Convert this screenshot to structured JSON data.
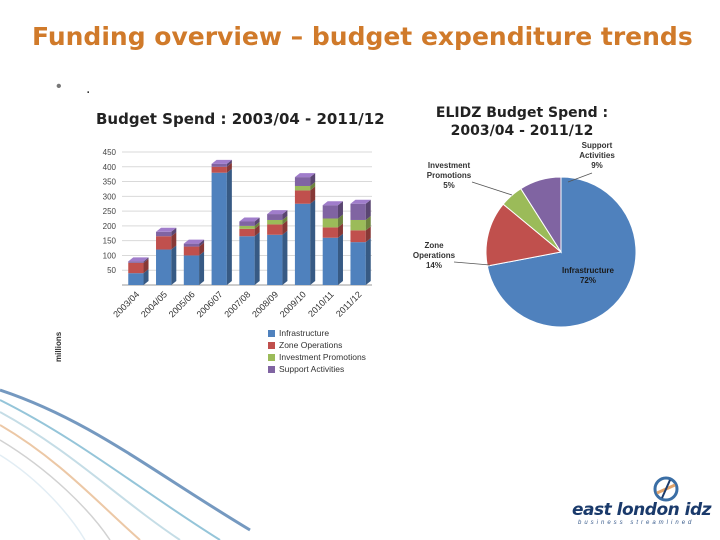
{
  "slide": {
    "title": "Funding overview – budget expenditure trends",
    "bullet": "•",
    "bullet_text": "."
  },
  "colors": {
    "title": "#d07a2a",
    "Infrastructure": "#4f81bd",
    "Zone Operations": "#c0504d",
    "Investment Promotions": "#9bbb59",
    "Support Activities": "#8064a2"
  },
  "chart_data": [
    {
      "type": "bar",
      "stacked": true,
      "title": "Budget Spend : 2003/04 - 2011/12",
      "ylabel": "millions",
      "ylim": [
        0,
        450
      ],
      "yticks": [
        50,
        100,
        150,
        200,
        250,
        300,
        350,
        400,
        450
      ],
      "categories": [
        "2003/04",
        "2004/05",
        "2005/06",
        "2006/07",
        "2007/08",
        "2008/09",
        "2009/10",
        "2010/11",
        "2011/12"
      ],
      "series": [
        {
          "name": "Infrastructure",
          "values": [
            40,
            120,
            100,
            380,
            165,
            170,
            275,
            160,
            145
          ]
        },
        {
          "name": "Zone Operations",
          "values": [
            35,
            45,
            30,
            20,
            25,
            35,
            45,
            35,
            40
          ]
        },
        {
          "name": "Investment Promotions",
          "values": [
            0,
            0,
            0,
            0,
            10,
            15,
            15,
            30,
            35
          ]
        },
        {
          "name": "Support Activities",
          "values": [
            5,
            15,
            10,
            10,
            15,
            20,
            30,
            45,
            55
          ]
        }
      ],
      "legend": "bottom"
    },
    {
      "type": "pie",
      "title": "ELIDZ Budget Spend : 2003/04 - 2011/12",
      "slices": [
        {
          "name": "Infrastructure",
          "value": 72,
          "label": "72%"
        },
        {
          "name": "Zone Operations",
          "value": 14,
          "label": "14%"
        },
        {
          "name": "Investment Promotions",
          "value": 5,
          "label": "5%"
        },
        {
          "name": "Support Activities",
          "value": 9,
          "label": "9%"
        }
      ]
    }
  ],
  "logo": {
    "name": "east london idz",
    "tagline": "business streamlined"
  }
}
